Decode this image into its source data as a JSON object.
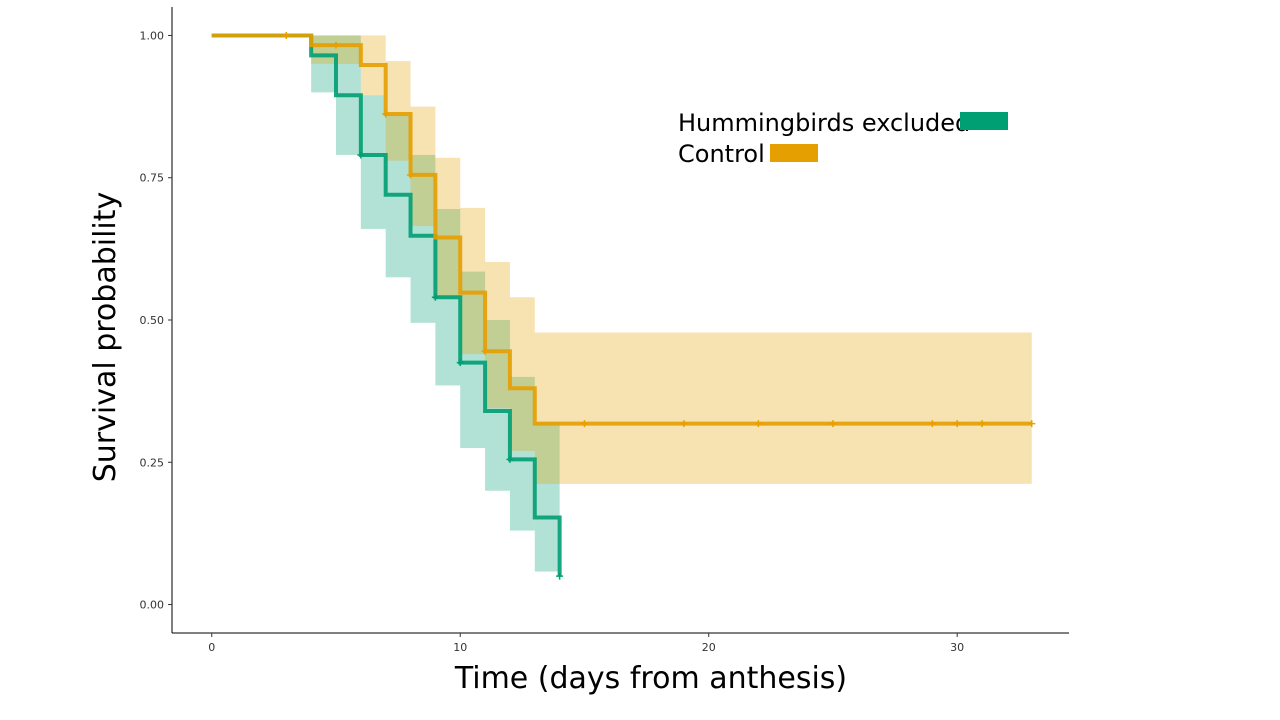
{
  "chart_data": {
    "type": "line",
    "subtype": "kaplan-meier survival curve with confidence bands",
    "title": "",
    "xlabel": "Time (days from anthesis)",
    "ylabel": "Survival probability",
    "xlim": [
      -1.6,
      34.5
    ],
    "ylim": [
      -0.05,
      1.05
    ],
    "x_ticks": [
      0,
      10,
      20,
      30
    ],
    "x_tick_labels": [
      "0",
      "10",
      "20",
      "30"
    ],
    "y_ticks": [
      0,
      0.25,
      0.5,
      0.75,
      1.0
    ],
    "y_tick_labels": [
      "0.00",
      "0.25",
      "0.50",
      "0.75",
      "1.00"
    ],
    "grid": false,
    "legend_position": "top-right",
    "series": [
      {
        "name": "Hummingbirds excluded",
        "color": "#009E73",
        "band_color": "#009E73",
        "steps": [
          {
            "x": 0,
            "y": 1.0,
            "lower": 1.0,
            "upper": 1.0
          },
          {
            "x": 4,
            "y": 0.965,
            "lower": 0.9,
            "upper": 1.0
          },
          {
            "x": 5,
            "y": 0.895,
            "lower": 0.79,
            "upper": 1.0
          },
          {
            "x": 6,
            "y": 0.79,
            "lower": 0.66,
            "upper": 0.895
          },
          {
            "x": 7,
            "y": 0.72,
            "lower": 0.575,
            "upper": 0.86
          },
          {
            "x": 8,
            "y": 0.648,
            "lower": 0.495,
            "upper": 0.79
          },
          {
            "x": 9,
            "y": 0.54,
            "lower": 0.385,
            "upper": 0.695
          },
          {
            "x": 10,
            "y": 0.425,
            "lower": 0.275,
            "upper": 0.585
          },
          {
            "x": 11,
            "y": 0.34,
            "lower": 0.2,
            "upper": 0.5
          },
          {
            "x": 12,
            "y": 0.255,
            "lower": 0.13,
            "upper": 0.4
          },
          {
            "x": 13,
            "y": 0.153,
            "lower": 0.058,
            "upper": 0.32
          },
          {
            "x": 14,
            "y": 0.05,
            "lower": 0.05,
            "upper": 0.05
          }
        ],
        "end_x": 14,
        "censor_x": [
          6,
          9,
          10,
          12,
          14
        ]
      },
      {
        "name": "Control",
        "color": "#E69F00",
        "band_color": "#E69F00",
        "steps": [
          {
            "x": 0,
            "y": 1.0,
            "lower": 1.0,
            "upper": 1.0
          },
          {
            "x": 4,
            "y": 0.983,
            "lower": 0.95,
            "upper": 1.0
          },
          {
            "x": 6,
            "y": 0.948,
            "lower": 0.895,
            "upper": 1.0
          },
          {
            "x": 7,
            "y": 0.862,
            "lower": 0.78,
            "upper": 0.955
          },
          {
            "x": 8,
            "y": 0.755,
            "lower": 0.665,
            "upper": 0.875
          },
          {
            "x": 9,
            "y": 0.645,
            "lower": 0.54,
            "upper": 0.785
          },
          {
            "x": 10,
            "y": 0.548,
            "lower": 0.44,
            "upper": 0.697
          },
          {
            "x": 11,
            "y": 0.445,
            "lower": 0.345,
            "upper": 0.602
          },
          {
            "x": 12,
            "y": 0.38,
            "lower": 0.27,
            "upper": 0.54
          },
          {
            "x": 13,
            "y": 0.318,
            "lower": 0.212,
            "upper": 0.478
          }
        ],
        "end_x": 33,
        "censor_x": [
          3,
          5,
          7,
          8,
          11,
          15,
          19,
          22,
          25,
          29,
          30,
          31,
          33
        ]
      }
    ]
  },
  "legend": {
    "items": [
      {
        "label": "Hummingbirds excluded",
        "color": "#009E73"
      },
      {
        "label": "Control",
        "color": "#E69F00"
      }
    ]
  }
}
